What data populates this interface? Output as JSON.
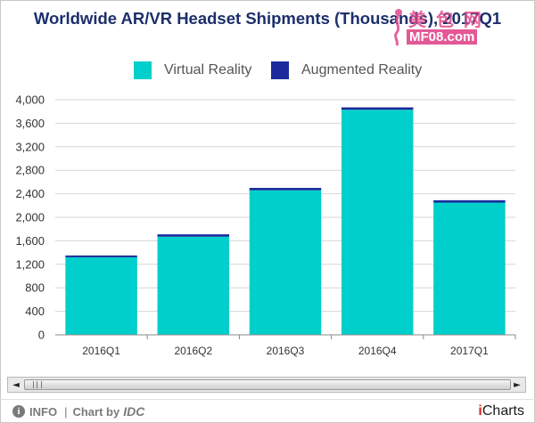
{
  "title": "Worldwide AR/VR Headset Shipments (Thousands), 2017Q1",
  "watermark": {
    "top": "美 包 网",
    "bottom": "MF08.com"
  },
  "legend": [
    {
      "label": "Virtual Reality",
      "color": "#00CFCB"
    },
    {
      "label": "Augmented Reality",
      "color": "#1A2A9C"
    }
  ],
  "chart_data": {
    "type": "bar",
    "stacked": true,
    "title": "Worldwide AR/VR Headset Shipments (Thousands), 2017Q1",
    "xlabel": "",
    "ylabel": "",
    "categories": [
      "2016Q1",
      "2016Q2",
      "2016Q3",
      "2016Q4",
      "2017Q1"
    ],
    "series": [
      {
        "name": "Virtual Reality",
        "color": "#00CFCB",
        "values": [
          1320,
          1670,
          2460,
          3830,
          2250
        ]
      },
      {
        "name": "Augmented Reality",
        "color": "#1A2A9C",
        "values": [
          30,
          40,
          40,
          40,
          40
        ]
      }
    ],
    "ylim": [
      0,
      4000
    ],
    "yticks": [
      0,
      400,
      800,
      1200,
      1600,
      2000,
      2400,
      2800,
      3200,
      3600,
      4000
    ],
    "ytick_labels": [
      "0",
      "400",
      "800",
      "1,200",
      "1,600",
      "2,000",
      "2,400",
      "2,800",
      "3,200",
      "3,600",
      "4,000"
    ],
    "grid": true,
    "legend_position": "top"
  },
  "footer": {
    "info_icon": "i",
    "info_label": "INFO",
    "separator": "|",
    "chart_by": "Chart by",
    "source": "IDC",
    "brand_i": "i",
    "brand_rest": "Charts"
  },
  "scrollbar": {
    "left_arrow": "◄",
    "right_arrow": "►"
  }
}
